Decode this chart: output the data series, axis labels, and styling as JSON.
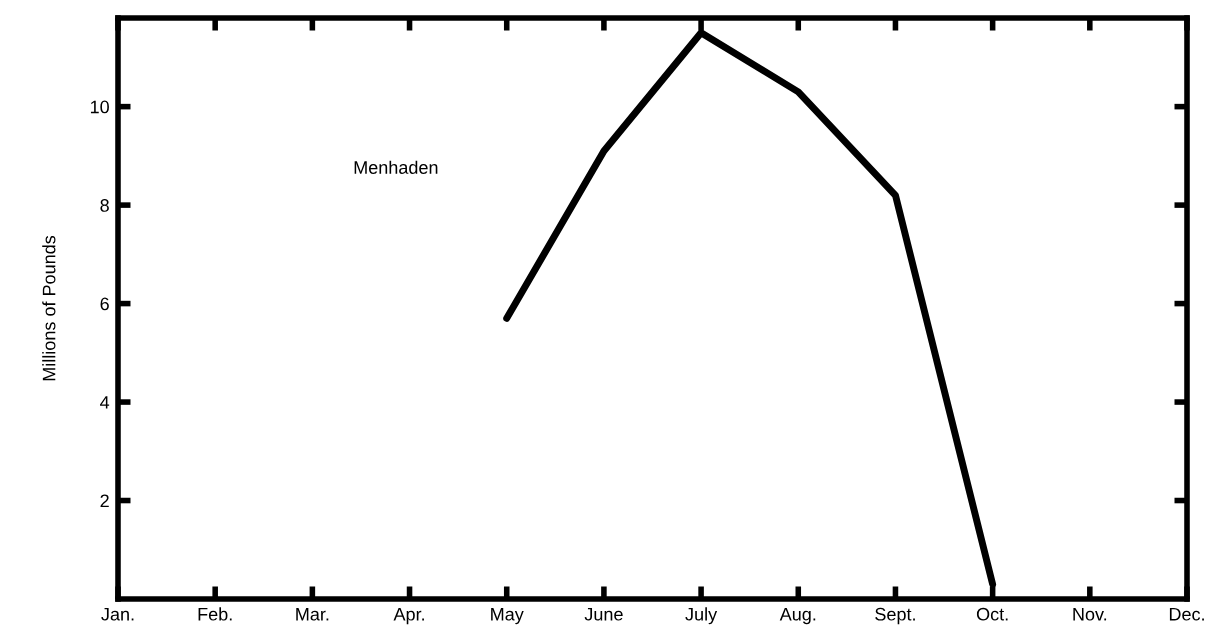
{
  "chart_data": {
    "type": "line",
    "ylabel": "Millions of Pounds",
    "categories": [
      "Jan.",
      "Feb.",
      "Mar.",
      "Apr.",
      "May",
      "June",
      "July",
      "Aug.",
      "Sept.",
      "Oct.",
      "Nov.",
      "Dec."
    ],
    "series": [
      {
        "name": "Menhaden",
        "color": "#000000",
        "values": [
          null,
          null,
          null,
          null,
          5.7,
          9.1,
          11.5,
          10.3,
          8.2,
          0.3,
          null,
          null
        ]
      }
    ],
    "ylim": [
      0,
      11.8
    ],
    "yticks": [
      2,
      4,
      6,
      8,
      10
    ],
    "grid": false,
    "legend": false,
    "marker": "none",
    "line_style": "solid"
  }
}
